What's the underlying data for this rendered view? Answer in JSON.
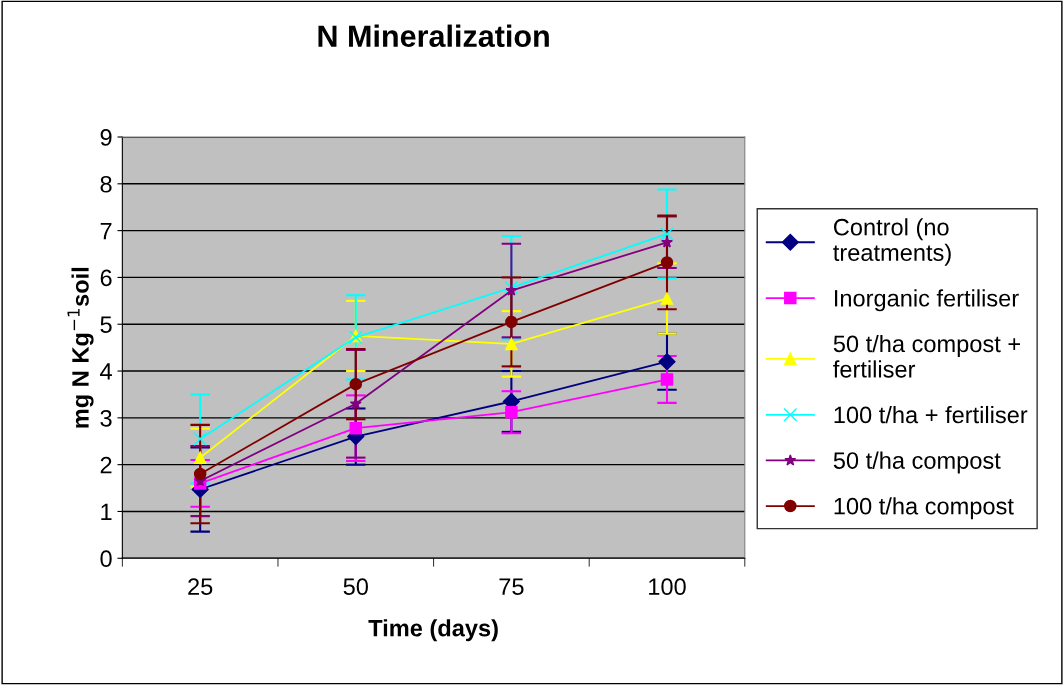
{
  "chart_data": {
    "type": "line",
    "title": "N Mineralization",
    "xlabel": "Time (days)",
    "ylabel": "mg N Kg$^{−1}$soil",
    "categories": [
      "25",
      "50",
      "75",
      "100"
    ],
    "series": [
      {
        "name": "Control (no\ntreatments)",
        "color": "#000080",
        "marker": "diamond",
        "values": [
          1.47,
          2.6,
          3.35,
          4.2
        ],
        "errors": [
          0.9,
          0.6,
          0.65,
          0.6
        ]
      },
      {
        "name": "Inorganic fertiliser",
        "color": "#ff00ff",
        "marker": "square",
        "values": [
          1.6,
          2.78,
          3.12,
          3.82
        ],
        "errors": [
          0.5,
          0.7,
          0.45,
          0.5
        ]
      },
      {
        "name": "50 t/ha compost +\nfertiliser",
        "color": "#ffff00",
        "marker": "triangle",
        "values": [
          2.15,
          4.75,
          4.58,
          5.55
        ],
        "errors": [
          0.62,
          0.75,
          0.7,
          0.75
        ]
      },
      {
        "name": "100 t/ha + fertiliser",
        "color": "#00ffff",
        "marker": "cross",
        "values": [
          2.55,
          4.72,
          5.78,
          6.93
        ],
        "errors": [
          0.95,
          0.9,
          1.1,
          0.95
        ]
      },
      {
        "name": "50 t/ha compost",
        "color": "#800080",
        "marker": "star",
        "values": [
          1.65,
          3.3,
          5.72,
          6.75
        ],
        "errors": [
          0.75,
          1.15,
          1.0,
          0.55
        ]
      },
      {
        "name": "100 t/ha compost",
        "color": "#800000",
        "marker": "circle",
        "values": [
          1.8,
          3.72,
          5.05,
          6.32
        ],
        "errors": [
          1.05,
          0.75,
          0.95,
          1.0
        ]
      }
    ],
    "ylim": [
      0,
      9
    ],
    "yticks": [
      0,
      1,
      2,
      3,
      4,
      5,
      6,
      7,
      8,
      9
    ],
    "grid": "y",
    "legend": "right",
    "line_style": "solid"
  }
}
